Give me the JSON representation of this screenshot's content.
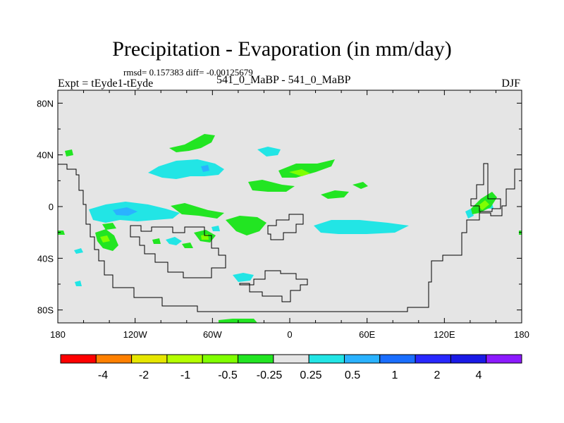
{
  "header": {
    "title": "Precipitation - Evaporation (in mm/day)",
    "stats": "rmsd= 0.157383 diff= -0.00125679",
    "expt": "Expt = tEyde1-tEyde",
    "center_label": "541_0_MaBP - 541_0_MaBP",
    "season": "DJF"
  },
  "chart_data": {
    "type": "heatmap",
    "x_ticks": [
      {
        "value": -180,
        "label": "180"
      },
      {
        "value": -120,
        "label": "120W"
      },
      {
        "value": -60,
        "label": "60W"
      },
      {
        "value": 0,
        "label": "0"
      },
      {
        "value": 60,
        "label": "60E"
      },
      {
        "value": 120,
        "label": "120E"
      },
      {
        "value": 180,
        "label": "180"
      }
    ],
    "y_ticks": [
      {
        "value": 80,
        "label": "80N"
      },
      {
        "value": 40,
        "label": "40N"
      },
      {
        "value": 0,
        "label": "0"
      },
      {
        "value": -40,
        "label": "40S"
      },
      {
        "value": -80,
        "label": "80S"
      }
    ],
    "xlim": [
      -180,
      180
    ],
    "ylim": [
      -90,
      90
    ],
    "background_color": "#e5e5e5",
    "colorbar": {
      "colors": [
        "#ff0000",
        "#ff8000",
        "#e6e600",
        "#b4ff00",
        "#80ff00",
        "#22e522",
        "#e5e5e5",
        "#22e5e5",
        "#2ab2ff",
        "#1a6eff",
        "#2828ff",
        "#1a1ae6",
        "#8c1aff"
      ],
      "labels": [
        "-4",
        "-2",
        "-1",
        "-0.5",
        "-0.25",
        "0.25",
        "0.5",
        "1",
        "2",
        "4"
      ]
    },
    "colors": {
      "dry_green": "#22e522",
      "light_green": "#80ff00",
      "cyan": "#22e5e5",
      "blue": "#2ab2ff"
    }
  }
}
